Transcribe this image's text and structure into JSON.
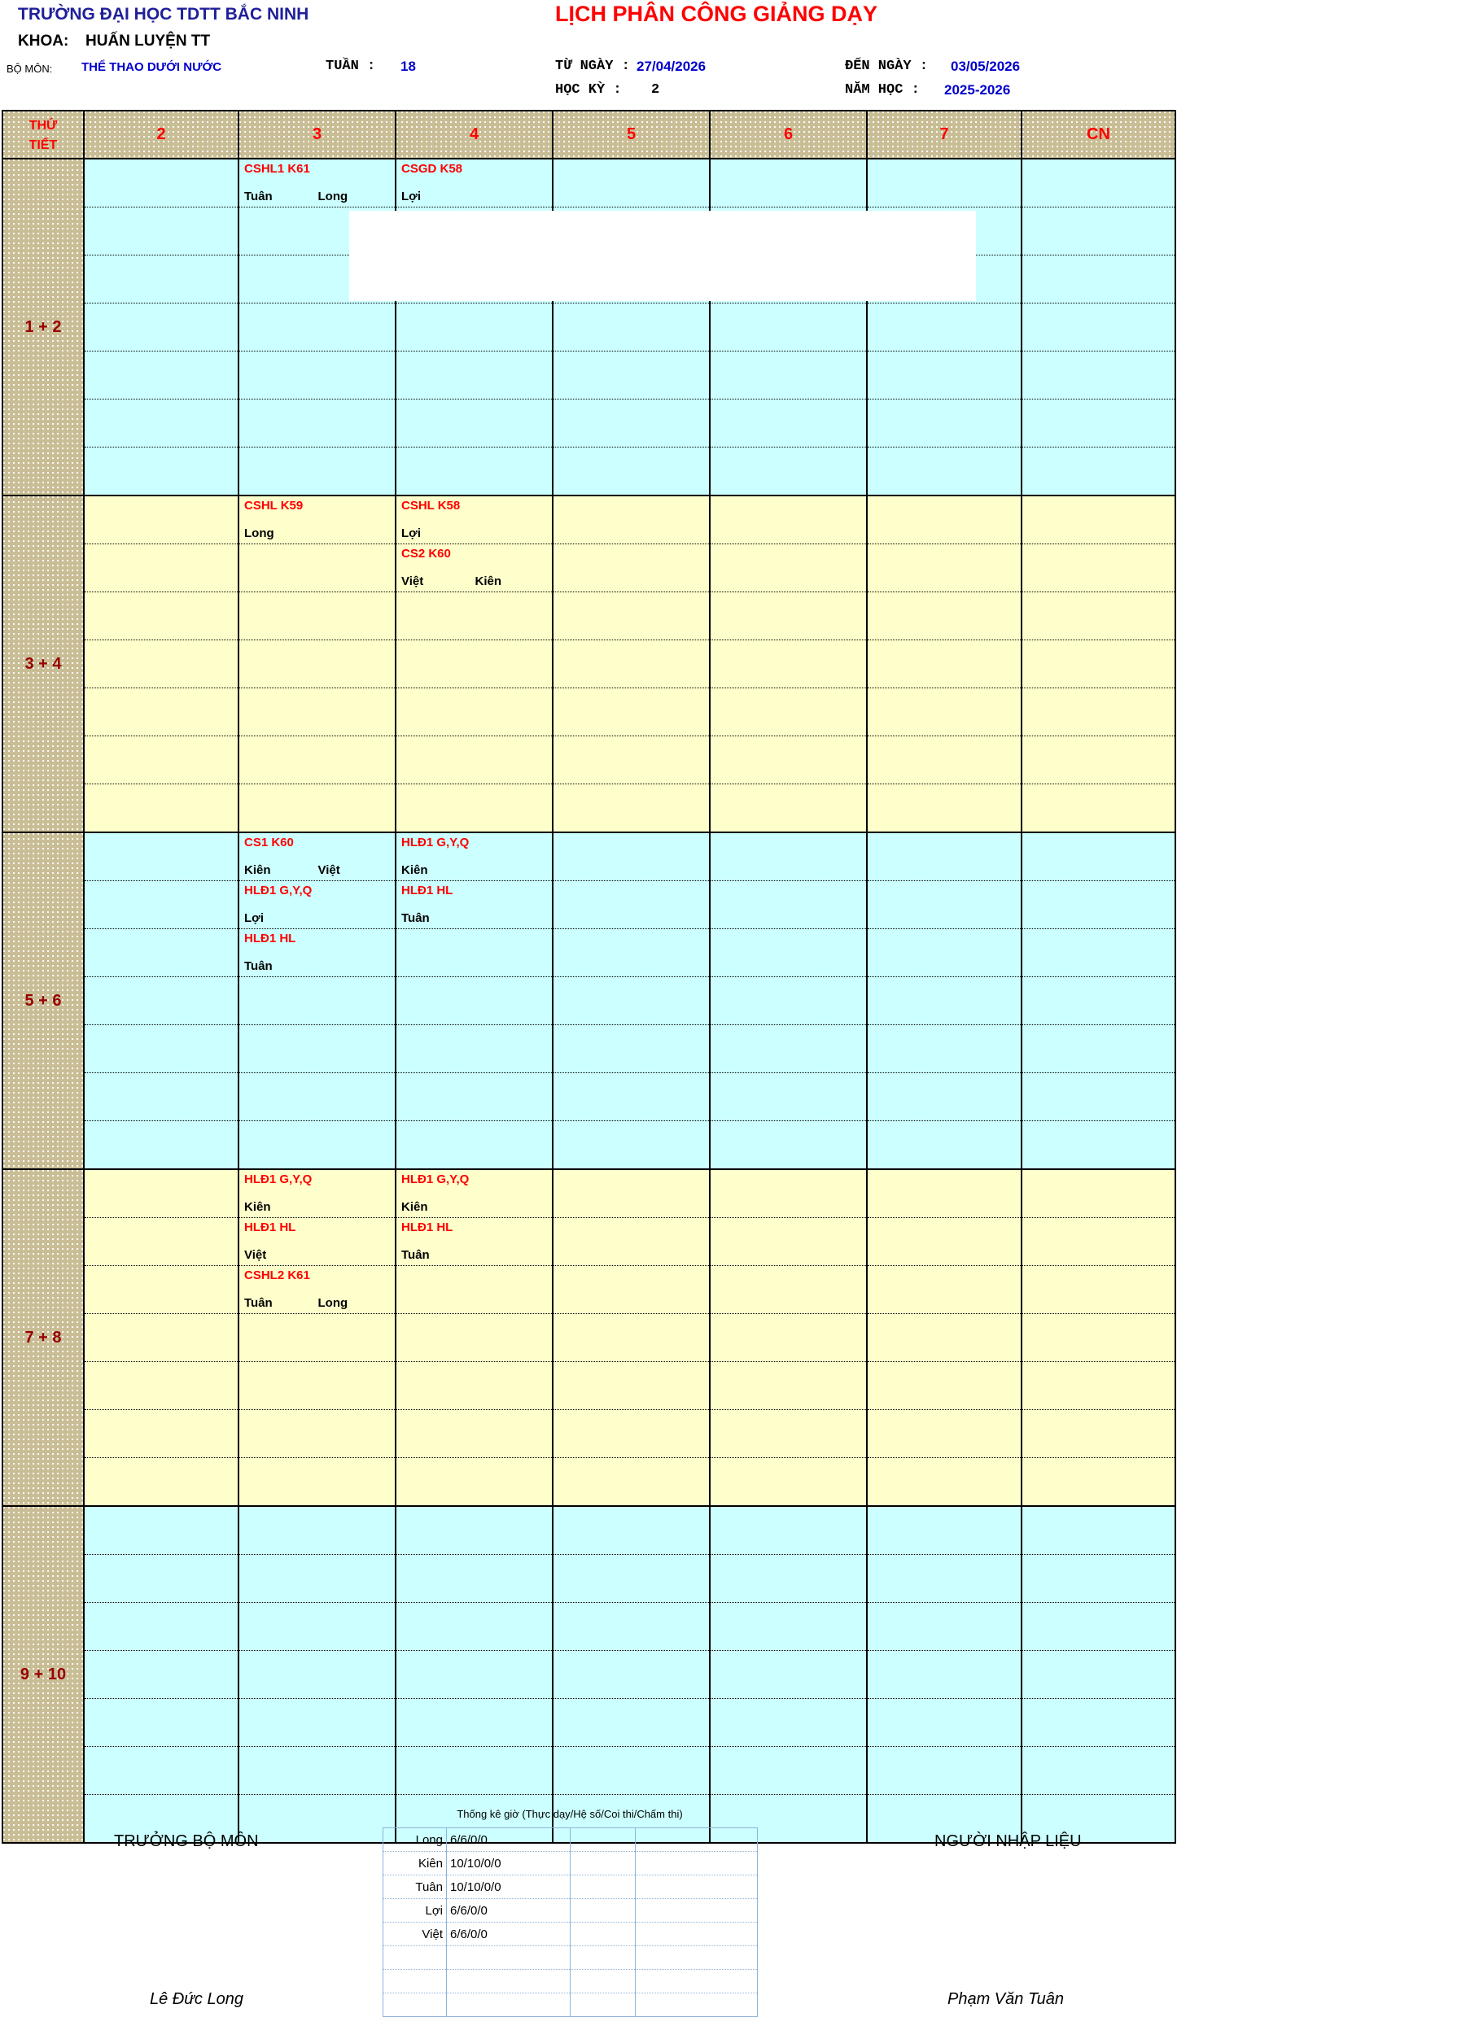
{
  "header": {
    "school": "TRƯỜNG ĐẠI HỌC TDTT BẮC NINH",
    "title": "LỊCH PHÂN CÔNG GIẢNG DẠY",
    "khoa_label": "KHOA:",
    "khoa_value": "HUẤN LUYỆN TT",
    "bomon_label": "BỘ MÔN:",
    "bomon_value": "THỂ THAO DƯỚI NƯỚC",
    "tuan_label": "TUẦN :",
    "tuan_value": "18",
    "tu_ngay_label": "TỪ NGÀY :",
    "tu_ngay_value": "27/04/2026",
    "den_ngay_label": "ĐẾN NGÀY :",
    "den_ngay_value": "03/05/2026",
    "hoc_ky_label": "HỌC KỲ :",
    "hoc_ky_value": "2",
    "nam_hoc_label": "NĂM HỌC :",
    "nam_hoc_value": "2025-2026"
  },
  "table": {
    "corner_top": "THỨ",
    "corner_bottom": "TIẾT",
    "day_headers": [
      "2",
      "3",
      "4",
      "5",
      "6",
      "7",
      "CN"
    ],
    "blocks": [
      {
        "label": "1 + 2",
        "bg": "cyan",
        "rows": [
          [
            null,
            {
              "course": "CSHL1  K61",
              "teachers": [
                "Tuân",
                "Long"
              ]
            },
            {
              "course": "CSGD K58",
              "teachers": [
                "Lợi"
              ]
            },
            null,
            null,
            null,
            null
          ],
          [
            null,
            null,
            null,
            null,
            null,
            null,
            null
          ],
          [
            null,
            null,
            null,
            null,
            null,
            null,
            null
          ],
          [
            null,
            null,
            null,
            null,
            null,
            null,
            null
          ],
          [
            null,
            null,
            null,
            null,
            null,
            null,
            null
          ],
          [
            null,
            null,
            null,
            null,
            null,
            null,
            null
          ],
          [
            null,
            null,
            null,
            null,
            null,
            null,
            null
          ]
        ]
      },
      {
        "label": "3 + 4",
        "bg": "yellow",
        "rows": [
          [
            null,
            {
              "course": "CSHL K59",
              "teachers": [
                "Long"
              ]
            },
            {
              "course": "CSHL K58",
              "teachers": [
                "Lợi"
              ]
            },
            null,
            null,
            null,
            null
          ],
          [
            null,
            null,
            {
              "course": "CS2 K60",
              "teachers": [
                "Việt",
                "Kiên"
              ]
            },
            null,
            null,
            null,
            null
          ],
          [
            null,
            null,
            null,
            null,
            null,
            null,
            null
          ],
          [
            null,
            null,
            null,
            null,
            null,
            null,
            null
          ],
          [
            null,
            null,
            null,
            null,
            null,
            null,
            null
          ],
          [
            null,
            null,
            null,
            null,
            null,
            null,
            null
          ],
          [
            null,
            null,
            null,
            null,
            null,
            null,
            null
          ]
        ]
      },
      {
        "label": "5 + 6",
        "bg": "cyan",
        "rows": [
          [
            null,
            {
              "course": "CS1 K60",
              "teachers": [
                "Kiên",
                "Việt"
              ]
            },
            {
              "course": "HLĐ1 G,Y,Q",
              "teachers": [
                "Kiên"
              ]
            },
            null,
            null,
            null,
            null
          ],
          [
            null,
            {
              "course": "HLĐ1 G,Y,Q",
              "teachers": [
                "Lợi"
              ]
            },
            {
              "course": "HLĐ1 HL",
              "teachers": [
                "Tuân"
              ]
            },
            null,
            null,
            null,
            null
          ],
          [
            null,
            {
              "course": "HLĐ1 HL",
              "teachers": [
                "Tuân"
              ]
            },
            null,
            null,
            null,
            null,
            null
          ],
          [
            null,
            null,
            null,
            null,
            null,
            null,
            null
          ],
          [
            null,
            null,
            null,
            null,
            null,
            null,
            null
          ],
          [
            null,
            null,
            null,
            null,
            null,
            null,
            null
          ],
          [
            null,
            null,
            null,
            null,
            null,
            null,
            null
          ]
        ]
      },
      {
        "label": "7 + 8",
        "bg": "yellow",
        "rows": [
          [
            null,
            {
              "course": "HLĐ1 G,Y,Q",
              "teachers": [
                "Kiên"
              ]
            },
            {
              "course": "HLĐ1 G,Y,Q",
              "teachers": [
                "Kiên"
              ]
            },
            null,
            null,
            null,
            null
          ],
          [
            null,
            {
              "course": "HLĐ1 HL",
              "teachers": [
                "Việt"
              ]
            },
            {
              "course": "HLĐ1 HL",
              "teachers": [
                "Tuân"
              ]
            },
            null,
            null,
            null,
            null
          ],
          [
            null,
            {
              "course": "CSHL2 K61",
              "teachers": [
                "Tuân",
                "Long"
              ]
            },
            null,
            null,
            null,
            null,
            null
          ],
          [
            null,
            null,
            null,
            null,
            null,
            null,
            null
          ],
          [
            null,
            null,
            null,
            null,
            null,
            null,
            null
          ],
          [
            null,
            null,
            null,
            null,
            null,
            null,
            null
          ],
          [
            null,
            null,
            null,
            null,
            null,
            null,
            null
          ]
        ]
      },
      {
        "label": "9 + 10",
        "bg": "cyan",
        "rows": [
          [
            null,
            null,
            null,
            null,
            null,
            null,
            null
          ],
          [
            null,
            null,
            null,
            null,
            null,
            null,
            null
          ],
          [
            null,
            null,
            null,
            null,
            null,
            null,
            null
          ],
          [
            null,
            null,
            null,
            null,
            null,
            null,
            null
          ],
          [
            null,
            null,
            null,
            null,
            null,
            null,
            null
          ],
          [
            null,
            null,
            null,
            null,
            null,
            null,
            null
          ],
          [
            null,
            null,
            null,
            null,
            null,
            null,
            null
          ]
        ]
      }
    ]
  },
  "footer": {
    "left_title": "TRƯỞNG BỘ MÔN",
    "right_title": "NGƯỜI NHẬP LIỆU",
    "stats_note": "Thống kê giờ (Thực dạy/Hệ số/Coi thi/Chấm thi)",
    "stats": [
      {
        "name": "Long",
        "value": "6/6/0/0"
      },
      {
        "name": "Kiên",
        "value": "10/10/0/0"
      },
      {
        "name": "Tuân",
        "value": "10/10/0/0"
      },
      {
        "name": "Lợi",
        "value": "6/6/0/0"
      },
      {
        "name": "Việt",
        "value": "6/6/0/0"
      }
    ],
    "stats_empty_rows": 3,
    "left_sign": "Lê Đức Long",
    "right_sign": "Phạm Văn Tuân"
  },
  "colors": {
    "cyan": "#CCFFFF",
    "yellow": "#FFFFCC",
    "tan": "#C9BD95",
    "red": "#FF0000",
    "dark_red": "#990000",
    "navy": "#1F1F99",
    "blue": "#0000CC",
    "stats_border": "#8DB4D9"
  }
}
